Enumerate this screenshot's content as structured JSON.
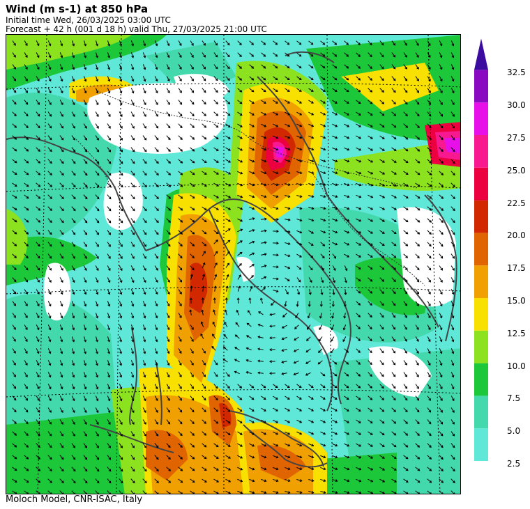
{
  "header": {
    "title": "Wind (m s-1) at 850 hPa",
    "initial_time": "Initial time  Wed, 26/03/2025  03:00 UTC",
    "forecast": "Forecast  +  42 h  (001 d 18 h)  valid Thu, 27/03/2025 21:00 UTC"
  },
  "footer": {
    "credit": "Moloch Model, CNR-ISAC, Italy"
  },
  "colorbar": {
    "units": "m s-1",
    "levels": [
      {
        "value": "2.5",
        "color": "#5fe8d8"
      },
      {
        "value": "5.0",
        "color": "#44d9ac"
      },
      {
        "value": "7.5",
        "color": "#1cc83a"
      },
      {
        "value": "10.0",
        "color": "#8ce21e"
      },
      {
        "value": "12.5",
        "color": "#f8e000"
      },
      {
        "value": "15.0",
        "color": "#f0a000"
      },
      {
        "value": "17.5",
        "color": "#e06400"
      },
      {
        "value": "20.0",
        "color": "#d22800"
      },
      {
        "value": "22.5",
        "color": "#ec0040"
      },
      {
        "value": "25.0",
        "color": "#f81890"
      },
      {
        "value": "27.5",
        "color": "#e810e8"
      },
      {
        "value": "30.0",
        "color": "#8a0ac2"
      },
      {
        "value": "32.5",
        "color": "#3c0ca0"
      }
    ]
  },
  "map": {
    "field": "wind speed and direction at 850 hPa",
    "region": "Central Mediterranean / Italy"
  }
}
